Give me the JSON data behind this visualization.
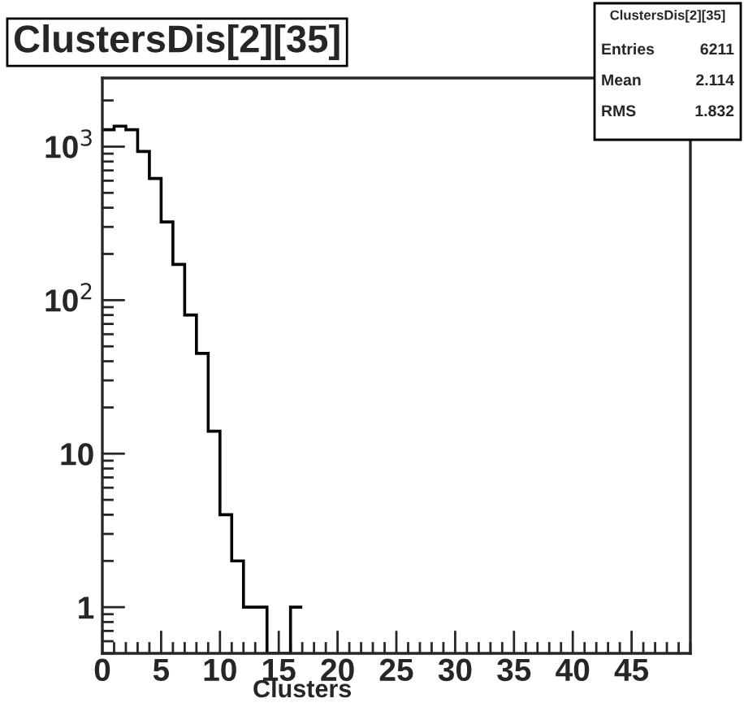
{
  "chart_data": {
    "type": "histogram",
    "title": "ClustersDis[2][35]",
    "xlabel": "Clusters",
    "bins": [
      0,
      1,
      2,
      3,
      4,
      5,
      6,
      7,
      8,
      9,
      10,
      11,
      12,
      13,
      14,
      15,
      16,
      17
    ],
    "values": [
      1290,
      1360,
      1290,
      930,
      620,
      323,
      171,
      80,
      45,
      14,
      4,
      2,
      1,
      1,
      null,
      null,
      1
    ],
    "color": "#000000",
    "log": "y",
    "xlim": [
      0,
      50
    ],
    "xticks": [
      0,
      5,
      10,
      15,
      20,
      25,
      30,
      35,
      40,
      45
    ],
    "ylim": [
      0.5,
      2800
    ],
    "yticks": [
      1,
      10,
      {
        "value": 100,
        "label": "10$^{2}$"
      },
      {
        "value": 1000,
        "label": "10$^{3}$"
      }
    ],
    "grid": false,
    "annotations": [
      "ClustersDis[2][35]",
      "Entries 6211",
      "Mean 2.114",
      "RMS 1.832"
    ]
  }
}
